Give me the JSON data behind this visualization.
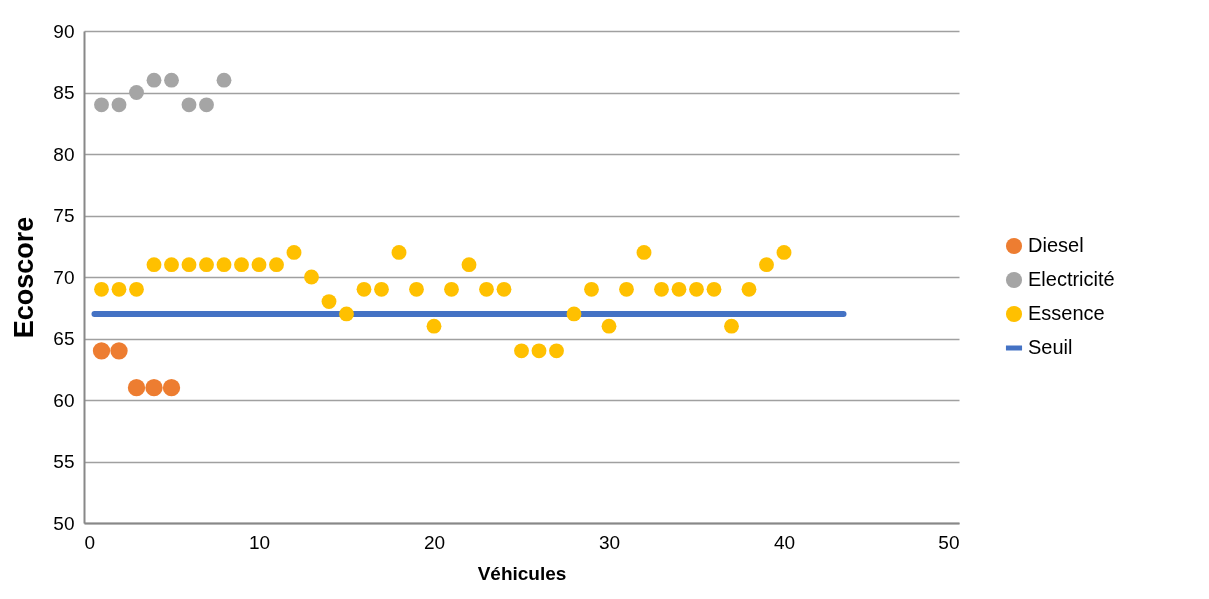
{
  "chart_data": {
    "type": "scatter",
    "xlabel": "Véhicules",
    "ylabel": "Ecoscore",
    "xlim": [
      0,
      50
    ],
    "xticks": [
      0,
      10,
      20,
      30,
      40,
      50
    ],
    "ylim": [
      50,
      90
    ],
    "yticks": [
      50,
      55,
      60,
      65,
      70,
      75,
      80,
      85,
      90
    ],
    "grid": "y",
    "legend": "right",
    "series": [
      {
        "name": "Diesel",
        "color": "#ed7d31",
        "marker": "circle",
        "x": [
          1,
          2,
          3,
          4,
          5
        ],
        "values": [
          64,
          64,
          61,
          61,
          61
        ]
      },
      {
        "name": "Electricité",
        "color": "#a5a5a5",
        "marker": "circle",
        "x": [
          1,
          2,
          3,
          4,
          5,
          6,
          7,
          8
        ],
        "values": [
          84,
          84,
          85,
          86,
          86,
          84,
          84,
          86
        ]
      },
      {
        "name": "Essence",
        "color": "#ffc000",
        "marker": "circle",
        "x": [
          1,
          2,
          3,
          4,
          5,
          6,
          7,
          8,
          9,
          10,
          11,
          12,
          13,
          14,
          15,
          16,
          17,
          18,
          19,
          20,
          21,
          22,
          23,
          24,
          25,
          26,
          27,
          28,
          29,
          30,
          31,
          32,
          33,
          34,
          35,
          36,
          37,
          38,
          39,
          40
        ],
        "values": [
          69,
          69,
          69,
          71,
          71,
          71,
          71,
          71,
          71,
          71,
          71,
          72,
          70,
          68,
          67,
          69,
          69,
          72,
          69,
          66,
          69,
          71,
          69,
          69,
          64,
          64,
          64,
          67,
          69,
          66,
          69,
          72,
          69,
          69,
          69,
          69,
          66,
          69,
          71,
          72
        ]
      },
      {
        "name": "Seuil",
        "type": "line",
        "marker": "none",
        "color": "#4472c4",
        "x": [
          0.6,
          43.4
        ],
        "values": [
          67,
          67
        ]
      }
    ]
  }
}
